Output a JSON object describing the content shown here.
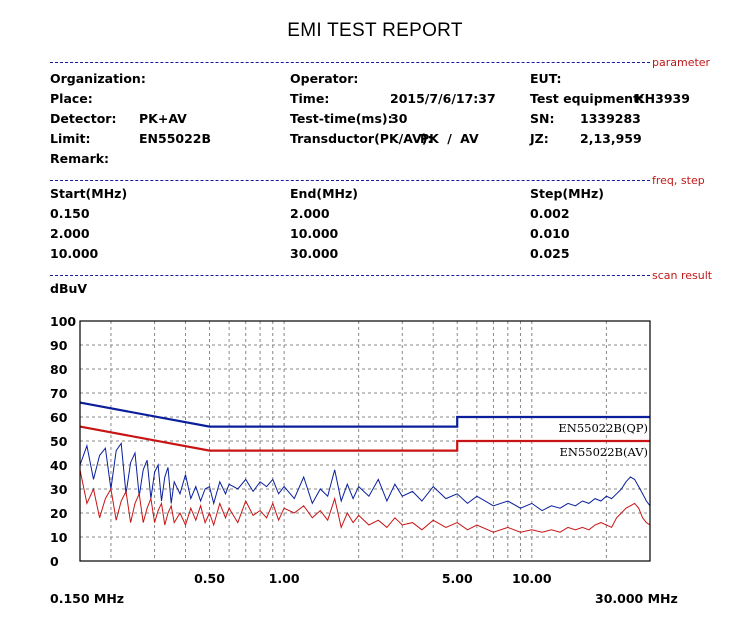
{
  "report": {
    "title": "EMI TEST REPORT",
    "sections": {
      "parameter": "parameter",
      "freq_step": "freq, step",
      "scan_result": "scan result"
    }
  },
  "parameters": {
    "organization_label": "Organization:",
    "place_label": "Place:",
    "detector_label": "Detector:",
    "detector_value": "PK+AV",
    "limit_label": "Limit:",
    "limit_value": "EN55022B",
    "remark_label": "Remark:",
    "operator_label": "Operator:",
    "time_label": "Time:",
    "time_value": "2015/7/6/17:37",
    "test_time_label": "Test-time(ms):",
    "test_time_value": "30",
    "transductor_label": "Transductor(PK/AV):",
    "transductor_value": "PK / AV",
    "eut_label": "EUT:",
    "test_equipment_label": "Test equipment:",
    "test_equipment_value": "KH3939",
    "sn_label": "SN:",
    "sn_value": "1339283",
    "jz_label": "JZ:",
    "jz_value": "2,13,959"
  },
  "freq_table": {
    "headers": [
      "Start(MHz)",
      "End(MHz)",
      "Step(MHz)"
    ],
    "rows": [
      [
        "0.150",
        "2.000",
        "0.002"
      ],
      [
        "2.000",
        "10.000",
        "0.010"
      ],
      [
        "10.000",
        "30.000",
        "0.025"
      ]
    ]
  },
  "chart_data": {
    "type": "line",
    "ylabel": "dBuV",
    "ylim": [
      0,
      100
    ],
    "xlim": [
      0.15,
      30
    ],
    "x_scale": "log",
    "yticks": [
      0,
      10,
      20,
      30,
      40,
      50,
      60,
      70,
      80,
      90,
      100
    ],
    "xtick_labels": [
      {
        "value": 0.5,
        "label": "0.50"
      },
      {
        "value": 1,
        "label": "1.00"
      },
      {
        "value": 5,
        "label": "5.00"
      },
      {
        "value": 10,
        "label": "10.00"
      }
    ],
    "x_start_label": "0.150 MHz",
    "x_end_label": "30.000 MHz",
    "grid": true,
    "limits": [
      {
        "name": "EN55022B(QP)",
        "color": "#0a1f9c",
        "x": [
          0.15,
          0.5,
          5,
          5,
          30
        ],
        "y": [
          66,
          56,
          56,
          60,
          60
        ]
      },
      {
        "name": "EN55022B(AV)",
        "color": "#c81414",
        "x": [
          0.15,
          0.5,
          5,
          5,
          30
        ],
        "y": [
          56,
          46,
          46,
          50,
          50
        ]
      }
    ],
    "series": [
      {
        "color": "#0a1f9c",
        "x": [
          0.15,
          0.16,
          0.17,
          0.18,
          0.19,
          0.2,
          0.21,
          0.22,
          0.23,
          0.24,
          0.25,
          0.26,
          0.27,
          0.28,
          0.29,
          0.3,
          0.31,
          0.32,
          0.33,
          0.34,
          0.35,
          0.36,
          0.38,
          0.4,
          0.42,
          0.44,
          0.46,
          0.48,
          0.5,
          0.52,
          0.55,
          0.58,
          0.6,
          0.65,
          0.7,
          0.75,
          0.8,
          0.85,
          0.9,
          0.95,
          1.0,
          1.1,
          1.2,
          1.3,
          1.4,
          1.5,
          1.6,
          1.7,
          1.8,
          1.9,
          2.0,
          2.2,
          2.4,
          2.6,
          2.8,
          3.0,
          3.3,
          3.6,
          4.0,
          4.5,
          5.0,
          5.5,
          6,
          7,
          8,
          9,
          10,
          11,
          12,
          13,
          14,
          15,
          16,
          17,
          18,
          19,
          20,
          21,
          22,
          23,
          24,
          25,
          26,
          27,
          28,
          29,
          30
        ],
        "y": [
          40,
          48,
          34,
          44,
          47,
          30,
          46,
          49,
          28,
          41,
          45,
          27,
          38,
          42,
          26,
          37,
          40,
          25,
          35,
          39,
          24,
          33,
          28,
          36,
          26,
          31,
          25,
          30,
          31,
          24,
          33,
          28,
          32,
          30,
          34,
          29,
          33,
          31,
          34,
          28,
          31,
          26,
          35,
          24,
          30,
          27,
          38,
          25,
          32,
          26,
          31,
          27,
          34,
          25,
          32,
          27,
          29,
          25,
          31,
          26,
          28,
          24,
          27,
          23,
          25,
          22,
          24,
          21,
          23,
          22,
          24,
          23,
          25,
          24,
          26,
          25,
          27,
          26,
          28,
          30,
          33,
          35,
          34,
          31,
          28,
          25,
          23
        ]
      },
      {
        "color": "#c81414",
        "x": [
          0.15,
          0.16,
          0.17,
          0.18,
          0.19,
          0.2,
          0.21,
          0.22,
          0.23,
          0.24,
          0.25,
          0.26,
          0.27,
          0.28,
          0.29,
          0.3,
          0.31,
          0.32,
          0.33,
          0.34,
          0.35,
          0.36,
          0.38,
          0.4,
          0.42,
          0.44,
          0.46,
          0.48,
          0.5,
          0.52,
          0.55,
          0.58,
          0.6,
          0.65,
          0.7,
          0.75,
          0.8,
          0.85,
          0.9,
          0.95,
          1.0,
          1.1,
          1.2,
          1.3,
          1.4,
          1.5,
          1.6,
          1.7,
          1.8,
          1.9,
          2.0,
          2.2,
          2.4,
          2.6,
          2.8,
          3.0,
          3.3,
          3.6,
          4.0,
          4.5,
          5.0,
          5.5,
          6,
          7,
          8,
          9,
          10,
          11,
          12,
          13,
          14,
          15,
          16,
          17,
          18,
          19,
          20,
          21,
          22,
          23,
          24,
          25,
          26,
          27,
          28,
          29,
          30
        ],
        "y": [
          38,
          24,
          30,
          18,
          26,
          30,
          17,
          25,
          29,
          16,
          24,
          28,
          16,
          22,
          26,
          16,
          21,
          24,
          15,
          20,
          23,
          16,
          20,
          15,
          22,
          17,
          23,
          16,
          20,
          15,
          24,
          18,
          22,
          16,
          25,
          19,
          21,
          18,
          24,
          17,
          22,
          20,
          23,
          18,
          21,
          17,
          26,
          14,
          20,
          16,
          19,
          15,
          17,
          14,
          18,
          15,
          16,
          13,
          17,
          14,
          16,
          13,
          15,
          12,
          14,
          12,
          13,
          12,
          13,
          12,
          14,
          13,
          14,
          13,
          15,
          16,
          15,
          14,
          18,
          20,
          22,
          23,
          24,
          22,
          18,
          16,
          15
        ]
      }
    ]
  }
}
